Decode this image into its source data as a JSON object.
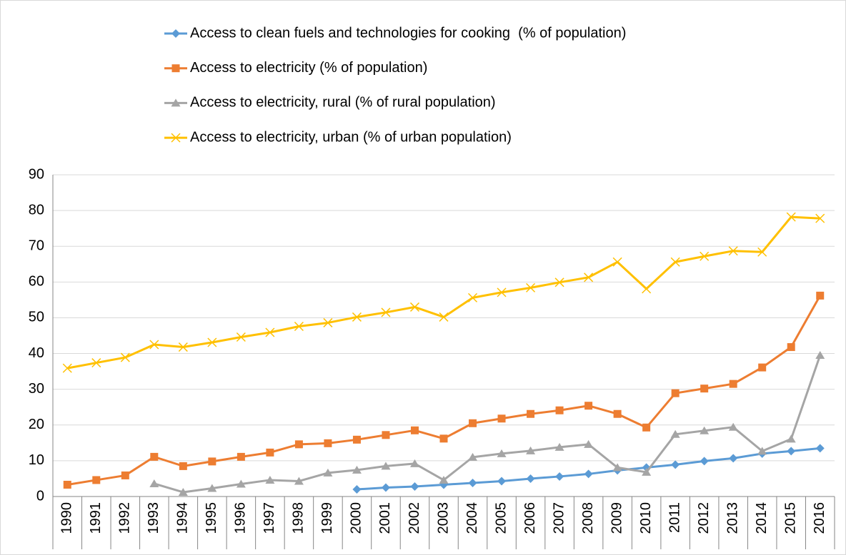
{
  "chart_data": {
    "type": "line",
    "categories": [
      "1990",
      "1991",
      "1992",
      "1993",
      "1994",
      "1995",
      "1996",
      "1997",
      "1998",
      "1999",
      "2000",
      "2001",
      "2002",
      "2003",
      "2004",
      "2005",
      "2006",
      "2007",
      "2008",
      "2009",
      "2010",
      "2011",
      "2012",
      "2013",
      "2014",
      "2015",
      "2016"
    ],
    "series": [
      {
        "name": "Access to clean fuels and technologies for cooking  (% of population)",
        "color": "#5b9bd5",
        "marker": "diamond",
        "values": [
          null,
          null,
          null,
          null,
          null,
          null,
          null,
          null,
          null,
          null,
          2.0,
          2.5,
          2.8,
          3.3,
          3.8,
          4.3,
          5.0,
          5.6,
          6.3,
          7.3,
          8.1,
          8.9,
          9.9,
          10.7,
          12.0,
          12.7,
          13.5
        ]
      },
      {
        "name": "Access to electricity (% of population)",
        "color": "#ed7d31",
        "marker": "square",
        "values": [
          3.3,
          4.6,
          5.9,
          11.1,
          8.5,
          9.8,
          11.1,
          12.3,
          14.6,
          14.9,
          15.9,
          17.2,
          18.5,
          16.2,
          20.5,
          21.8,
          23.1,
          24.1,
          25.4,
          23.1,
          19.3,
          28.9,
          30.2,
          31.5,
          36.1,
          41.8,
          56.2
        ]
      },
      {
        "name": "Access to electricity, rural (% of rural population)",
        "color": "#a5a5a5",
        "marker": "triangle",
        "values": [
          null,
          null,
          null,
          3.6,
          1.2,
          2.3,
          3.5,
          4.6,
          4.3,
          6.6,
          7.4,
          8.5,
          9.2,
          4.6,
          11.0,
          12.0,
          12.8,
          13.8,
          14.6,
          8.1,
          6.8,
          17.4,
          18.4,
          19.4,
          12.7,
          16.1,
          39.5
        ]
      },
      {
        "name": "Access to electricity, urban (% of urban population)",
        "color": "#ffc000",
        "marker": "x",
        "values": [
          35.9,
          37.4,
          38.9,
          42.5,
          41.8,
          43.1,
          44.6,
          45.9,
          47.6,
          48.6,
          50.2,
          51.5,
          53.0,
          50.2,
          55.6,
          57.1,
          58.4,
          59.9,
          61.3,
          65.6,
          58.1,
          65.6,
          67.2,
          68.7,
          68.4,
          78.2,
          77.8
        ]
      }
    ],
    "ylim": [
      0,
      90
    ],
    "yticks": [
      0,
      10,
      20,
      30,
      40,
      50,
      60,
      70,
      80,
      90
    ],
    "grid": true
  }
}
